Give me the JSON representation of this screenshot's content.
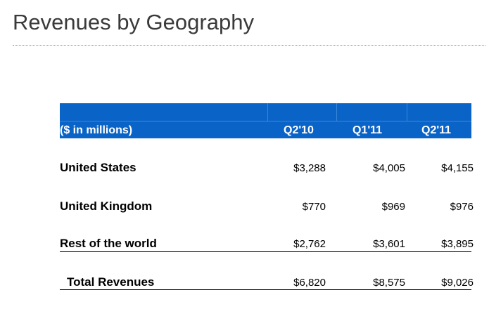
{
  "header": {
    "title": "Revenues by Geography"
  },
  "table": {
    "columns": [
      "($ in millions)",
      "Q2'10",
      "Q1'11",
      "Q2'11"
    ],
    "rows": [
      [
        "United States",
        "$3,288",
        "$4,005",
        "$4,155"
      ],
      [
        "United Kingdom",
        "$770",
        "$969",
        "$976"
      ],
      [
        "Rest of the world",
        "$2,762",
        "$3,601",
        "$3,895"
      ],
      [
        "Total Revenues",
        "$6,820",
        "$8,575",
        "$9,026"
      ]
    ]
  }
}
